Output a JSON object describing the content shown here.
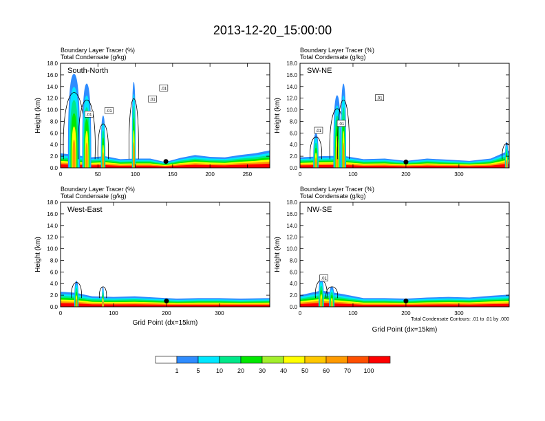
{
  "figure": {
    "title": "2013-12-20_15:00:00"
  },
  "chart_data": [
    {
      "type": "heatmap",
      "panel_label": "South-North",
      "top_left_lines": [
        "Boundary Layer Tracer   (%)",
        "Total Condensate   (g/kg)"
      ],
      "xlabel": "",
      "ylabel": "Height (km)",
      "xlim": [
        0,
        280
      ],
      "ylim": [
        0,
        18
      ],
      "xticks": [
        0,
        50,
        100,
        150,
        200,
        250
      ],
      "yticks": [
        0,
        2,
        4,
        6,
        8,
        10,
        12,
        14,
        16,
        18
      ],
      "ytick_labels": [
        "0.0",
        "2.0",
        "4.0",
        "6.0",
        "8.0",
        "10.0",
        "12.0",
        "14.0",
        "16.0",
        "18.0"
      ],
      "contour_labels": [
        {
          "text": "0",
          "x": 141,
          "y": 1.1
        },
        {
          "text": ".01",
          "x": 38,
          "y": 9.2
        },
        {
          "text": ".01",
          "x": 65,
          "y": 9.8
        },
        {
          "text": ".01",
          "x": 123,
          "y": 11.8
        },
        {
          "text": ".01",
          "x": 138,
          "y": 13.7
        }
      ],
      "plumes": [
        {
          "x": 18,
          "top": 16.2,
          "width": 16
        },
        {
          "x": 35,
          "top": 14.5,
          "width": 12
        },
        {
          "x": 57,
          "top": 9.0,
          "width": 6
        },
        {
          "x": 98,
          "top": 14.8,
          "width": 5
        }
      ],
      "surface_band": [
        [
          0,
          2.5
        ],
        [
          20,
          2.2
        ],
        [
          40,
          1.8
        ],
        [
          60,
          2.0
        ],
        [
          80,
          1.5
        ],
        [
          100,
          1.6
        ],
        [
          120,
          1.6
        ],
        [
          140,
          1.0
        ],
        [
          160,
          1.7
        ],
        [
          180,
          2.2
        ],
        [
          200,
          1.9
        ],
        [
          220,
          1.8
        ],
        [
          240,
          2.2
        ],
        [
          260,
          2.5
        ],
        [
          280,
          3.0
        ]
      ]
    },
    {
      "type": "heatmap",
      "panel_label": "SW-NE",
      "top_left_lines": [
        "Boundary Layer Tracer   (%)",
        "Total Condensate   (g/kg)"
      ],
      "xlabel": "",
      "ylabel": "Height (km)",
      "xlim": [
        0,
        395
      ],
      "ylim": [
        0,
        18
      ],
      "xticks": [
        0,
        100,
        200,
        300
      ],
      "yticks": [
        0,
        2,
        4,
        6,
        8,
        10,
        12,
        14,
        16,
        18
      ],
      "ytick_labels": [
        "0.0",
        "2.0",
        "4.0",
        "6.0",
        "8.0",
        "10.0",
        "12.0",
        "14.0",
        "16.0",
        "18.0"
      ],
      "contour_labels": [
        {
          "text": "0",
          "x": 200,
          "y": 1.0
        },
        {
          "text": ".01",
          "x": 78,
          "y": 7.6
        },
        {
          "text": ".01",
          "x": 150,
          "y": 12.0
        },
        {
          "text": ".01",
          "x": 35,
          "y": 6.4
        }
      ],
      "plumes": [
        {
          "x": 30,
          "top": 6.0,
          "width": 10
        },
        {
          "x": 70,
          "top": 12.5,
          "width": 14
        },
        {
          "x": 82,
          "top": 14.5,
          "width": 10
        },
        {
          "x": 390,
          "top": 4.5,
          "width": 6
        }
      ],
      "surface_band": [
        [
          0,
          1.8
        ],
        [
          40,
          2.0
        ],
        [
          80,
          2.1
        ],
        [
          120,
          1.5
        ],
        [
          160,
          1.6
        ],
        [
          200,
          1.2
        ],
        [
          240,
          1.6
        ],
        [
          280,
          1.4
        ],
        [
          320,
          1.2
        ],
        [
          360,
          1.6
        ],
        [
          395,
          3.0
        ]
      ]
    },
    {
      "type": "heatmap",
      "panel_label": "West-East",
      "top_left_lines": [
        "Boundary Layer Tracer   (%)",
        "Total Condensate   (g/kg)"
      ],
      "xlabel": "Grid Point (dx=15km)",
      "ylabel": "Height (km)",
      "xlim": [
        0,
        395
      ],
      "ylim": [
        0,
        18
      ],
      "xticks": [
        0,
        100,
        200,
        300
      ],
      "yticks": [
        0,
        2,
        4,
        6,
        8,
        10,
        12,
        14,
        16,
        18
      ],
      "ytick_labels": [
        "0.0",
        "2.0",
        "4.0",
        "6.0",
        "8.0",
        "10.0",
        "12.0",
        "14.0",
        "16.0",
        "18.0"
      ],
      "contour_labels": [
        {
          "text": "0",
          "x": 200,
          "y": 1.0
        }
      ],
      "plumes": [
        {
          "x": 30,
          "top": 4.5,
          "width": 8
        },
        {
          "x": 80,
          "top": 3.5,
          "width": 4
        }
      ],
      "surface_band": [
        [
          0,
          2.6
        ],
        [
          30,
          2.4
        ],
        [
          60,
          1.8
        ],
        [
          100,
          1.7
        ],
        [
          140,
          1.8
        ],
        [
          180,
          1.6
        ],
        [
          220,
          1.4
        ],
        [
          260,
          1.5
        ],
        [
          300,
          1.5
        ],
        [
          340,
          1.4
        ],
        [
          395,
          1.5
        ]
      ]
    },
    {
      "type": "heatmap",
      "panel_label": "NW-SE",
      "top_left_lines": [
        "Boundary Layer Tracer   (%)",
        "Total Condensate   (g/kg)"
      ],
      "xlabel": "Grid Point (dx=15km)",
      "ylabel": "Height (km)",
      "xlim": [
        0,
        395
      ],
      "ylim": [
        0,
        18
      ],
      "xticks": [
        0,
        100,
        200,
        300
      ],
      "yticks": [
        0,
        2,
        4,
        6,
        8,
        10,
        12,
        14,
        16,
        18
      ],
      "ytick_labels": [
        "0.0",
        "2.0",
        "4.0",
        "6.0",
        "8.0",
        "10.0",
        "12.0",
        "14.0",
        "16.0",
        "18.0"
      ],
      "contour_labels": [
        {
          "text": "0",
          "x": 200,
          "y": 1.0
        },
        {
          "text": ".01",
          "x": 45,
          "y": 4.9
        }
      ],
      "plumes": [
        {
          "x": 40,
          "top": 5.0,
          "width": 10
        },
        {
          "x": 60,
          "top": 3.5,
          "width": 10
        }
      ],
      "surface_band": [
        [
          0,
          2.0
        ],
        [
          40,
          2.8
        ],
        [
          80,
          2.2
        ],
        [
          120,
          1.5
        ],
        [
          160,
          1.5
        ],
        [
          200,
          1.4
        ],
        [
          240,
          1.6
        ],
        [
          280,
          1.7
        ],
        [
          320,
          1.6
        ],
        [
          360,
          1.9
        ],
        [
          395,
          2.1
        ]
      ],
      "footnote": "Total Condensate Contours: .01 to .01 by .000"
    }
  ],
  "legend": {
    "colors": [
      "#ffffff",
      "#2f8cff",
      "#00e7ff",
      "#00e88a",
      "#00e800",
      "#a3ef2c",
      "#ffff00",
      "#ffc800",
      "#ff9a00",
      "#ff4f00",
      "#ff0000"
    ],
    "labels": [
      "1",
      "5",
      "10",
      "20",
      "30",
      "40",
      "50",
      "60",
      "70",
      "100"
    ]
  }
}
